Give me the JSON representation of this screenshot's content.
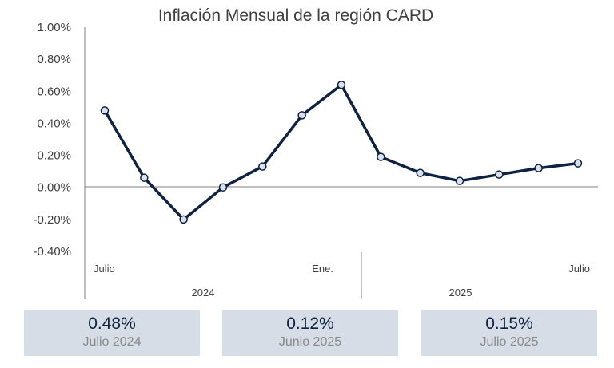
{
  "chart_data": {
    "type": "line",
    "title": "Inflación Mensual de la región CARD",
    "x": [
      "2024-07",
      "2024-08",
      "2024-09",
      "2024-10",
      "2024-11",
      "2024-12",
      "2025-01",
      "2025-02",
      "2025-03",
      "2025-04",
      "2025-05",
      "2025-06",
      "2025-07"
    ],
    "series": [
      {
        "values": [
          0.48,
          0.06,
          -0.2,
          0.0,
          0.13,
          0.45,
          0.64,
          0.19,
          0.09,
          0.04,
          0.08,
          0.12,
          0.15
        ]
      }
    ],
    "ylim": [
      -0.4,
      1.0
    ],
    "yticks": [
      "1.00%",
      "0.80%",
      "0.60%",
      "0.40%",
      "0.20%",
      "0.00%",
      "-0.20%",
      "-0.40%"
    ],
    "x_tick_labels": [
      {
        "month": "2024-07",
        "label": "Julio"
      },
      {
        "month": "2025-01",
        "label": "Ene."
      },
      {
        "month": "2025-07",
        "label": "Julio"
      }
    ],
    "year_labels": [
      "2024",
      "2025"
    ],
    "line_color": "#0f2340",
    "marker_fill": "#d9e1ec",
    "grid": false,
    "legend": "none"
  },
  "cards": [
    {
      "value": "0.48%",
      "label": "Julio 2024"
    },
    {
      "value": "0.12%",
      "label": "Junio 2025"
    },
    {
      "value": "0.15%",
      "label": "Julio 2025"
    }
  ],
  "colors": {
    "card_bg": "#d6dde6",
    "card_value": "#0f2340",
    "card_label": "#8a8a8a"
  }
}
